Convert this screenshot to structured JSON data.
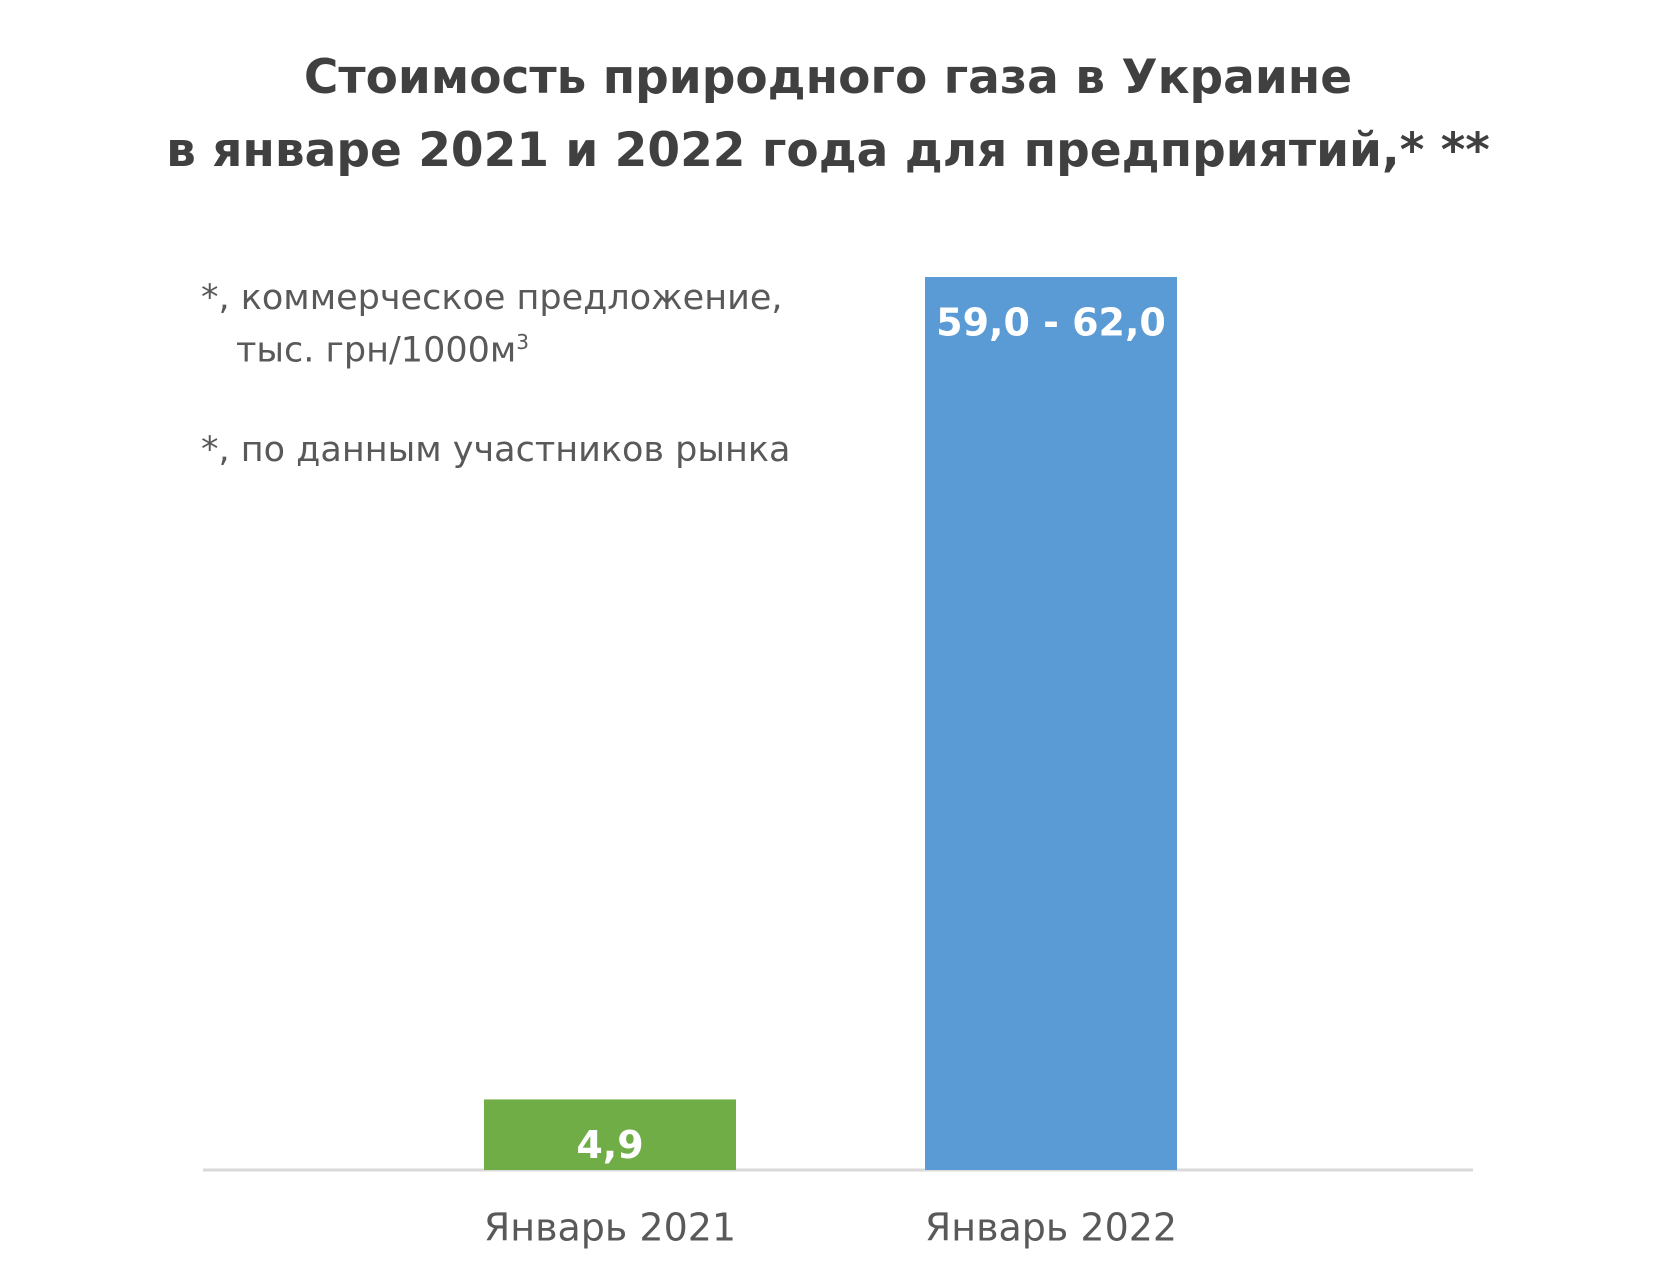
{
  "chart_data": {
    "type": "bar",
    "title": "Стоимость природного газа в Украине в январе 2021 и 2022 года для предприятий,* **",
    "title_lines": [
      "Стоимость природного газа в Украине",
      "в январе 2021 и 2022 года для предприятий,* **"
    ],
    "notes": {
      "note1_line1": "*, коммерческое предложение,",
      "note1_line2": "тыс. грн/1000м",
      "note1_sup": "3",
      "note2": "*, по данным участников рынка"
    },
    "categories": [
      "Январь 2021",
      "Январь 2022"
    ],
    "values": [
      4.9,
      62.0
    ],
    "data_labels": [
      "4,9",
      "59,0 - 62,0"
    ],
    "colors": [
      "#70ad47",
      "#5b9bd5"
    ],
    "ylim": [
      0,
      62
    ],
    "grid": false,
    "legend": "none",
    "xlabel": "",
    "ylabel": ""
  }
}
